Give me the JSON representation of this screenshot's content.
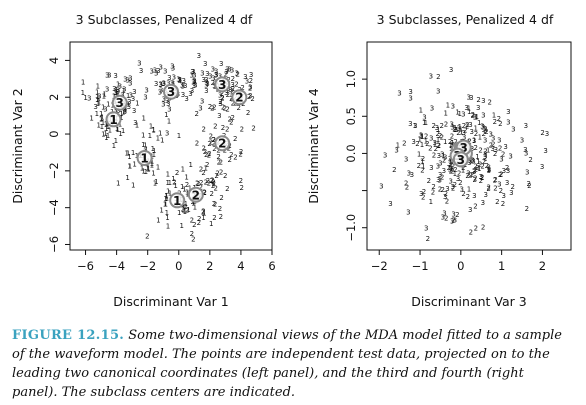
{
  "colors": {
    "class1": "#38cf38",
    "class2": "#f2941e",
    "class3": "#2fd3e6",
    "center": "#8a8a8a",
    "axis": "#111111",
    "caption_label": "#3aa2bf"
  },
  "caption": {
    "label": "FIGURE 12.15.",
    "text": "Some two-dimensional views of the MDA model fitted to a sample of the waveform model. The points are independent test data, projected on to the leading two canonical coordinates (left panel), and the third and fourth (right panel). The subclass centers are indicated."
  },
  "chart_data": [
    {
      "type": "scatter",
      "title": "3 Subclasses, Penalized 4 df",
      "xlabel": "Discriminant Var 1",
      "ylabel": "Discriminant Var 2",
      "xlim": [
        -7,
        6
      ],
      "ylim": [
        -6.3,
        5
      ],
      "xticks": [
        -6,
        -4,
        -2,
        0,
        2,
        4,
        6
      ],
      "yticks": [
        -6,
        -4,
        -2,
        0,
        2,
        4
      ],
      "grid": false,
      "marker": "class digit",
      "series": [
        {
          "label": "1",
          "color": "#38cf38",
          "clusters": [
            {
              "center": [
                -4.3,
                0.8
              ],
              "spread": [
                0.9,
                0.7
              ],
              "n": 45
            },
            {
              "center": [
                -2.2,
                -1.3
              ],
              "spread": [
                0.9,
                0.9
              ],
              "n": 50
            },
            {
              "center": [
                0.0,
                -3.5
              ],
              "spread": [
                0.9,
                0.9
              ],
              "n": 45
            },
            {
              "center": [
                -4.6,
                2.1
              ],
              "spread": [
                0.7,
                0.4
              ],
              "n": 15
            }
          ]
        },
        {
          "label": "2",
          "color": "#f2941e",
          "clusters": [
            {
              "center": [
                3.6,
                2.0
              ],
              "spread": [
                0.7,
                0.7
              ],
              "n": 45
            },
            {
              "center": [
                2.6,
                -0.8
              ],
              "spread": [
                0.8,
                0.9
              ],
              "n": 55
            },
            {
              "center": [
                1.4,
                -3.6
              ],
              "spread": [
                0.8,
                0.8
              ],
              "n": 45
            }
          ]
        },
        {
          "label": "3",
          "color": "#2fd3e6",
          "clusters": [
            {
              "center": [
                -3.8,
                2.0
              ],
              "spread": [
                0.9,
                0.6
              ],
              "n": 45
            },
            {
              "center": [
                -0.5,
                2.5
              ],
              "spread": [
                1.1,
                0.6
              ],
              "n": 55
            },
            {
              "center": [
                2.6,
                2.9
              ],
              "spread": [
                1.0,
                0.6
              ],
              "n": 50
            }
          ]
        }
      ],
      "centers": [
        {
          "label": "1",
          "x": -4.2,
          "y": 0.8
        },
        {
          "label": "1",
          "x": -2.2,
          "y": -1.3
        },
        {
          "label": "1",
          "x": -0.1,
          "y": -3.6
        },
        {
          "label": "2",
          "x": 3.9,
          "y": 2.0
        },
        {
          "label": "2",
          "x": 2.8,
          "y": -0.5
        },
        {
          "label": "2",
          "x": 1.1,
          "y": -3.3
        },
        {
          "label": "3",
          "x": -3.8,
          "y": 1.7
        },
        {
          "label": "3",
          "x": -0.5,
          "y": 2.3
        },
        {
          "label": "3",
          "x": 2.8,
          "y": 2.7
        }
      ]
    },
    {
      "type": "scatter",
      "title": "3 Subclasses, Penalized 4 df",
      "xlabel": "Discriminant Var 3",
      "ylabel": "Discriminant Var 4",
      "xlim": [
        -2.3,
        2.7
      ],
      "ylim": [
        -1.3,
        1.5
      ],
      "xticks": [
        -2,
        -1,
        0,
        1,
        2
      ],
      "yticks": [
        -1.0,
        -0.5,
        0.0,
        0.5,
        1.0
      ],
      "ytick_labels": [
        "-1.0",
        "",
        "0.0",
        "0.5",
        "1.0"
      ],
      "grid": false,
      "marker": "class digit",
      "series": [
        {
          "label": "1",
          "color": "#38cf38",
          "clusters": [
            {
              "center": [
                -0.2,
                0.1
              ],
              "spread": [
                0.55,
                0.35
              ],
              "n": 55
            }
          ]
        },
        {
          "label": "2",
          "color": "#f2941e",
          "clusters": [
            {
              "center": [
                0.1,
                -0.1
              ],
              "spread": [
                0.7,
                0.4
              ],
              "n": 130
            }
          ]
        },
        {
          "label": "3",
          "color": "#2fd3e6",
          "clusters": [
            {
              "center": [
                0.0,
                0.05
              ],
              "spread": [
                0.8,
                0.45
              ],
              "n": 120
            }
          ]
        }
      ],
      "centers": [
        {
          "label": "1",
          "x": -0.05,
          "y": 0.05
        },
        {
          "label": "1",
          "x": 0.05,
          "y": -0.02
        },
        {
          "label": "1",
          "x": 0.0,
          "y": 0.02
        },
        {
          "label": "2",
          "x": 0.1,
          "y": 0.0
        },
        {
          "label": "2",
          "x": -0.02,
          "y": -0.05
        },
        {
          "label": "2",
          "x": 0.02,
          "y": 0.06
        },
        {
          "label": "3",
          "x": 0.07,
          "y": 0.08
        },
        {
          "label": "3",
          "x": -0.08,
          "y": -0.03
        },
        {
          "label": "3",
          "x": 0.0,
          "y": -0.08
        }
      ]
    }
  ]
}
